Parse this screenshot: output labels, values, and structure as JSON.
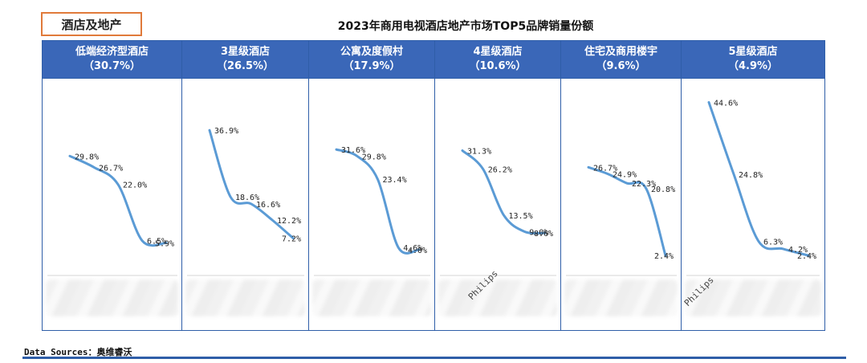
{
  "header_tag": "酒店及地产",
  "title": "2023年商用电视酒店地产市场TOP5品牌销量份额",
  "source": "Data Sources：奥维睿沃",
  "chart_data": [
    {
      "type": "line",
      "category": "低端经济型酒店",
      "share": "（30.7%）",
      "values": [
        29.8,
        26.7,
        22.0,
        6.5,
        5.9
      ],
      "labels": [
        "29.8%",
        "26.7%",
        "22.0%",
        "6.5%",
        "5.9%"
      ],
      "ylim": [
        0,
        50
      ],
      "color": "#5b9bd5"
    },
    {
      "type": "line",
      "category": "3星级酒店",
      "share": "（26.5%）",
      "values": [
        36.9,
        18.6,
        16.6,
        12.2,
        7.2
      ],
      "labels": [
        "36.9%",
        "18.6%",
        "16.6%",
        "12.2%",
        "7.2%"
      ],
      "ylim": [
        0,
        50
      ],
      "color": "#5b9bd5"
    },
    {
      "type": "line",
      "category": "公寓及度假村",
      "share": "（17.9%）",
      "values": [
        31.6,
        29.8,
        23.4,
        4.6,
        4.0
      ],
      "labels": [
        "31.6%",
        "29.8%",
        "23.4%",
        "4.6%",
        "4.0%"
      ],
      "ylim": [
        0,
        50
      ],
      "color": "#5b9bd5"
    },
    {
      "type": "line",
      "category": "4星级酒店",
      "share": "（10.6%）",
      "values": [
        31.3,
        26.2,
        13.5,
        9.0,
        8.6
      ],
      "labels": [
        "31.3%",
        "26.2%",
        "13.5%",
        "9.0%",
        "8.6%"
      ],
      "ylim": [
        0,
        50
      ],
      "color": "#5b9bd5",
      "logo_text": "Philips"
    },
    {
      "type": "line",
      "category": "住宅及商用楼宇",
      "share": "（9.6%）",
      "values": [
        26.7,
        24.9,
        22.3,
        20.8,
        2.4
      ],
      "labels": [
        "26.7%",
        "24.9%",
        "22.3%",
        "20.8%",
        "2.4%"
      ],
      "ylim": [
        0,
        50
      ],
      "color": "#5b9bd5"
    },
    {
      "type": "line",
      "category": "5星级酒店",
      "share": "（4.9%）",
      "values": [
        44.6,
        24.8,
        6.3,
        4.2,
        2.4
      ],
      "labels": [
        "44.6%",
        "24.8%",
        "6.3%",
        "4.2%",
        "2.4%"
      ],
      "ylim": [
        0,
        50
      ],
      "color": "#5b9bd5",
      "logo_text": "Philips"
    }
  ]
}
